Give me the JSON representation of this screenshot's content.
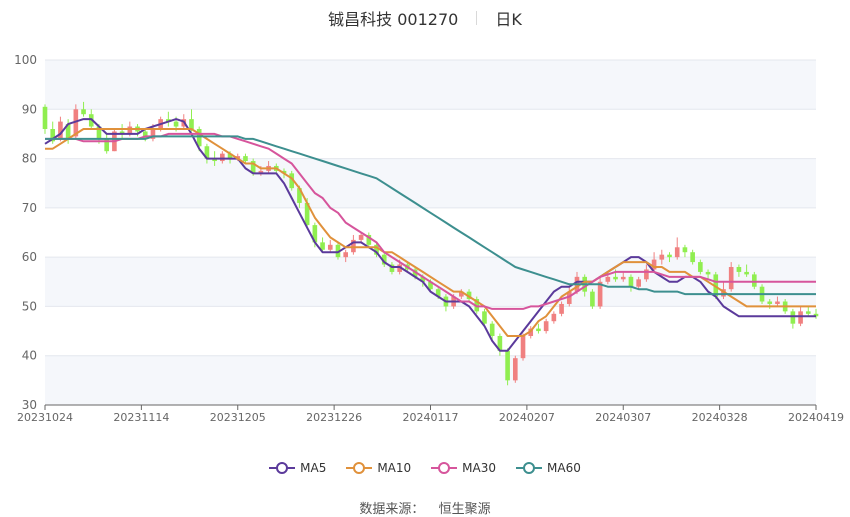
{
  "header": {
    "stock": "铖昌科技 001270",
    "period": "日K"
  },
  "source": {
    "label": "数据来源：",
    "name": "恒生聚源"
  },
  "chart_data": {
    "type": "candlestick",
    "ylim": [
      30,
      100
    ],
    "yticks": [
      30,
      40,
      50,
      60,
      70,
      80,
      90,
      100
    ],
    "xtick_labels": [
      "20231024",
      "20231114",
      "20231205",
      "20231226",
      "20240117",
      "20240207",
      "20240307",
      "20240328",
      "20240419"
    ],
    "up_color": "#f08080",
    "down_color": "#90ee50",
    "grid": true,
    "band_fill": "#f5f7fb",
    "legend_position": "bottom",
    "candles": [
      [
        90.5,
        86.0,
        91.0,
        85.0
      ],
      [
        86.0,
        83.5,
        87.5,
        83.0
      ],
      [
        84.0,
        87.5,
        88.5,
        83.5
      ],
      [
        87.0,
        84.0,
        88.0,
        83.0
      ],
      [
        84.5,
        90.0,
        91.0,
        84.0
      ],
      [
        90.0,
        89.0,
        91.5,
        88.5
      ],
      [
        89.0,
        86.5,
        90.0,
        86.0
      ],
      [
        86.5,
        84.0,
        87.0,
        83.0
      ],
      [
        84.0,
        81.5,
        85.0,
        81.0
      ],
      [
        81.5,
        85.5,
        86.0,
        81.5
      ],
      [
        85.5,
        85.0,
        87.0,
        84.0
      ],
      [
        85.0,
        86.5,
        87.5,
        84.5
      ],
      [
        86.5,
        85.5,
        87.0,
        84.5
      ],
      [
        85.5,
        84.0,
        86.0,
        83.5
      ],
      [
        84.0,
        86.0,
        87.0,
        83.5
      ],
      [
        86.0,
        88.0,
        88.5,
        85.5
      ],
      [
        88.0,
        87.5,
        89.5,
        86.5
      ],
      [
        87.5,
        86.5,
        88.5,
        85.5
      ],
      [
        86.5,
        88.0,
        89.0,
        86.0
      ],
      [
        88.0,
        86.0,
        90.0,
        85.5
      ],
      [
        86.0,
        82.5,
        86.5,
        81.5
      ],
      [
        82.5,
        80.0,
        83.0,
        79.0
      ],
      [
        80.0,
        79.5,
        81.5,
        78.5
      ],
      [
        79.5,
        81.0,
        81.5,
        79.0
      ],
      [
        81.0,
        80.0,
        81.5,
        79.0
      ],
      [
        80.0,
        80.5,
        81.0,
        79.5
      ],
      [
        80.5,
        79.5,
        81.0,
        79.0
      ],
      [
        79.5,
        77.0,
        80.0,
        76.5
      ],
      [
        77.0,
        77.5,
        78.5,
        76.5
      ],
      [
        77.5,
        78.5,
        79.5,
        77.0
      ],
      [
        78.5,
        77.5,
        79.0,
        77.0
      ],
      [
        77.5,
        77.0,
        78.0,
        76.0
      ],
      [
        77.0,
        74.0,
        77.5,
        73.5
      ],
      [
        74.0,
        71.0,
        74.5,
        70.0
      ],
      [
        71.0,
        66.5,
        72.0,
        66.0
      ],
      [
        66.5,
        63.0,
        67.0,
        62.0
      ],
      [
        63.0,
        61.5,
        64.0,
        61.0
      ],
      [
        61.5,
        62.5,
        63.5,
        61.0
      ],
      [
        62.5,
        60.0,
        63.0,
        59.5
      ],
      [
        60.0,
        61.0,
        61.5,
        59.0
      ],
      [
        61.0,
        63.5,
        64.5,
        60.5
      ],
      [
        63.5,
        64.5,
        65.0,
        63.0
      ],
      [
        64.5,
        62.5,
        65.0,
        62.0
      ],
      [
        62.5,
        60.5,
        63.0,
        60.0
      ],
      [
        60.5,
        58.5,
        61.0,
        58.0
      ],
      [
        58.5,
        57.0,
        59.0,
        56.5
      ],
      [
        57.0,
        58.5,
        59.5,
        56.5
      ],
      [
        58.5,
        57.5,
        59.0,
        57.0
      ],
      [
        57.5,
        56.0,
        58.0,
        55.5
      ],
      [
        56.0,
        55.0,
        56.5,
        54.0
      ],
      [
        55.0,
        53.5,
        55.5,
        53.0
      ],
      [
        53.5,
        52.0,
        54.0,
        51.5
      ],
      [
        52.0,
        50.0,
        52.5,
        49.0
      ],
      [
        50.0,
        52.0,
        52.5,
        49.5
      ],
      [
        52.0,
        53.0,
        53.5,
        51.5
      ],
      [
        53.0,
        51.5,
        53.5,
        51.0
      ],
      [
        51.5,
        49.0,
        52.0,
        48.5
      ],
      [
        49.0,
        46.5,
        49.5,
        46.0
      ],
      [
        46.5,
        44.0,
        47.0,
        43.0
      ],
      [
        44.0,
        41.0,
        44.5,
        40.0
      ],
      [
        41.0,
        35.0,
        41.5,
        34.0
      ],
      [
        35.0,
        39.5,
        40.0,
        34.5
      ],
      [
        39.5,
        44.0,
        44.5,
        39.0
      ],
      [
        44.0,
        45.5,
        46.0,
        43.5
      ],
      [
        45.5,
        45.0,
        46.5,
        44.5
      ],
      [
        45.0,
        47.0,
        47.5,
        44.5
      ],
      [
        47.0,
        48.5,
        49.0,
        46.5
      ],
      [
        48.5,
        50.5,
        51.0,
        48.0
      ],
      [
        50.5,
        53.0,
        54.0,
        50.0
      ],
      [
        53.0,
        56.0,
        57.0,
        52.5
      ],
      [
        56.0,
        53.0,
        56.5,
        52.0
      ],
      [
        53.0,
        50.0,
        53.5,
        49.5
      ],
      [
        50.0,
        55.0,
        56.0,
        49.5
      ],
      [
        55.0,
        56.0,
        57.0,
        54.5
      ],
      [
        56.0,
        55.5,
        57.5,
        55.0
      ],
      [
        55.5,
        56.0,
        57.0,
        55.0
      ],
      [
        56.0,
        54.0,
        56.5,
        53.0
      ],
      [
        54.0,
        55.5,
        56.0,
        53.5
      ],
      [
        55.5,
        57.5,
        58.5,
        55.0
      ],
      [
        57.5,
        59.5,
        61.0,
        57.0
      ],
      [
        59.5,
        60.5,
        61.5,
        58.5
      ],
      [
        60.5,
        60.0,
        61.0,
        59.0
      ],
      [
        60.0,
        62.0,
        64.0,
        59.5
      ],
      [
        62.0,
        61.0,
        62.5,
        60.0
      ],
      [
        61.0,
        59.0,
        61.5,
        58.5
      ],
      [
        59.0,
        57.0,
        59.5,
        56.5
      ],
      [
        57.0,
        56.5,
        57.5,
        55.5
      ],
      [
        56.5,
        52.0,
        57.0,
        51.5
      ],
      [
        52.0,
        53.5,
        55.0,
        51.5
      ],
      [
        53.5,
        58.0,
        59.0,
        53.0
      ],
      [
        58.0,
        57.0,
        58.5,
        56.0
      ],
      [
        57.0,
        56.5,
        58.5,
        56.0
      ],
      [
        56.5,
        54.0,
        57.0,
        53.5
      ],
      [
        54.0,
        51.0,
        54.5,
        50.5
      ],
      [
        51.0,
        50.5,
        51.5,
        49.5
      ],
      [
        50.5,
        51.0,
        52.0,
        50.0
      ],
      [
        51.0,
        49.0,
        51.5,
        48.5
      ],
      [
        49.0,
        46.5,
        49.5,
        45.5
      ],
      [
        46.5,
        49.0,
        50.0,
        46.0
      ],
      [
        49.0,
        48.5,
        50.0,
        48.0
      ],
      [
        48.5,
        48.0,
        49.5,
        47.5
      ]
    ],
    "series": [
      {
        "name": "MA5",
        "color": "#5b3a9b",
        "values": [
          83,
          84,
          85,
          87,
          87.5,
          88,
          88,
          86.5,
          85,
          85,
          85,
          85,
          85,
          86,
          86.5,
          87,
          87.5,
          88,
          87.5,
          85,
          82,
          80,
          80,
          80,
          80,
          80,
          78,
          77,
          77,
          77,
          77,
          75,
          72,
          69,
          66,
          63,
          61,
          61,
          61,
          62,
          63,
          63,
          62,
          61,
          59,
          58,
          58,
          57,
          56,
          55,
          53,
          52,
          51,
          51,
          51,
          50,
          48,
          46,
          43,
          41,
          41,
          43,
          45,
          47,
          49,
          51,
          53,
          54,
          54,
          55,
          55,
          55,
          56,
          57,
          58,
          59,
          60,
          60,
          59,
          57,
          56,
          55,
          55,
          56,
          56,
          55,
          53,
          52,
          50,
          49,
          48,
          48,
          48,
          48,
          48,
          48,
          48,
          48,
          48,
          48,
          48
        ]
      },
      {
        "name": "MA10",
        "color": "#e0913b",
        "values": [
          82,
          82,
          83,
          84,
          85,
          86,
          86,
          86,
          86,
          86,
          86,
          86,
          86,
          86,
          86,
          86,
          86,
          86,
          86,
          86,
          85,
          84,
          83,
          82,
          81,
          80,
          79,
          79,
          78,
          78,
          78,
          77,
          76,
          74,
          71,
          68,
          66,
          64,
          63,
          62,
          62,
          62,
          62,
          62,
          61,
          61,
          60,
          59,
          58,
          57,
          56,
          55,
          54,
          53,
          53,
          52,
          51,
          50,
          48,
          46,
          44,
          44,
          44,
          45,
          47,
          48,
          50,
          52,
          53,
          54,
          55,
          55,
          56,
          57,
          58,
          59,
          59,
          59,
          59,
          58,
          58,
          57,
          57,
          57,
          56,
          56,
          55,
          54,
          53,
          52,
          51,
          50,
          50,
          50,
          50,
          50,
          50,
          50,
          50,
          50,
          50
        ]
      },
      {
        "name": "MA30",
        "color": "#d6559c",
        "values": [
          84,
          84,
          84,
          84,
          84,
          83.5,
          83.5,
          83.5,
          83.5,
          83.5,
          84,
          84,
          84,
          84.5,
          84.5,
          84.5,
          85,
          85,
          85,
          85,
          85,
          85,
          85,
          84.5,
          84.5,
          84,
          83.5,
          83,
          82.5,
          82,
          81,
          80,
          79,
          77,
          75,
          73,
          72,
          70,
          69,
          67,
          66,
          65,
          64,
          63,
          61,
          60,
          59,
          58,
          57,
          56,
          55,
          54,
          53,
          52,
          51,
          51,
          50,
          50,
          49.5,
          49.5,
          49.5,
          49.5,
          49.5,
          50,
          50,
          50.5,
          51,
          51.5,
          52,
          53,
          54,
          55,
          56,
          56.5,
          57,
          57,
          57,
          57,
          57,
          57,
          56.5,
          56,
          56,
          56,
          56,
          56,
          55.5,
          55,
          55,
          55,
          55,
          55,
          55,
          55,
          55,
          55,
          55,
          55,
          55,
          55,
          55
        ]
      },
      {
        "name": "MA60",
        "color": "#3d8f8f",
        "values": [
          84,
          84,
          84,
          84,
          84,
          84,
          84,
          84,
          84,
          84,
          84,
          84,
          84,
          84,
          84.5,
          84.5,
          84.5,
          84.5,
          84.5,
          84.5,
          84.5,
          84.5,
          84.5,
          84.5,
          84.5,
          84.5,
          84,
          84,
          83.5,
          83,
          82.5,
          82,
          81.5,
          81,
          80.5,
          80,
          79.5,
          79,
          78.5,
          78,
          77.5,
          77,
          76.5,
          76,
          75,
          74,
          73,
          72,
          71,
          70,
          69,
          68,
          67,
          66,
          65,
          64,
          63,
          62,
          61,
          60,
          59,
          58,
          57.5,
          57,
          56.5,
          56,
          55.5,
          55,
          54.5,
          54.5,
          54.5,
          54.5,
          54.5,
          54,
          54,
          54,
          54,
          53.5,
          53.5,
          53,
          53,
          53,
          53,
          52.5,
          52.5,
          52.5,
          52.5,
          52.5,
          52.5,
          52.5,
          52.5,
          52.5,
          52.5,
          52.5,
          52.5,
          52.5,
          52.5,
          52.5,
          52.5,
          52.5,
          52.5
        ]
      }
    ]
  }
}
